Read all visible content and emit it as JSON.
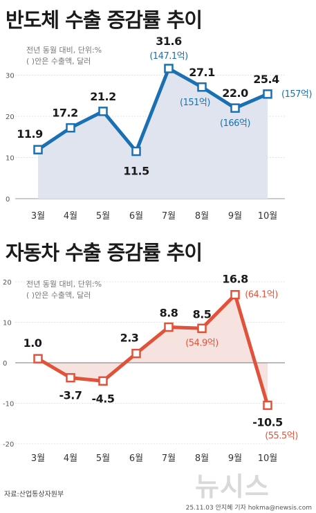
{
  "charts": [
    {
      "title": "반도체 수출 증감률 추이",
      "note1": "전년 동월 대비, 단위:%",
      "note2": "( )안은 수출액, 달러"
    },
    {
      "title": "자동차 수출 증감률 추이",
      "note1": "전년 동월 대비, 단위:%",
      "note2": "( )안은 수출액, 달러"
    }
  ],
  "chart_data": [
    {
      "type": "area",
      "title": "반도체 수출 증감률 추이",
      "categories": [
        "3월",
        "4월",
        "5월",
        "6월",
        "7월",
        "8월",
        "9월",
        "10월"
      ],
      "values": [
        11.9,
        17.2,
        21.2,
        11.5,
        31.6,
        27.1,
        22.0,
        25.4
      ],
      "value_labels": [
        "11.9",
        "17.2",
        "21.2",
        "11.5",
        "31.6",
        "27.1",
        "22.0",
        "25.4"
      ],
      "export_labels": [
        "",
        "",
        "",
        "",
        "(147.1억)",
        "(151억)",
        "(166억)",
        "(157억)"
      ],
      "yticks": [
        "0",
        "10",
        "20",
        "30"
      ],
      "ylim": [
        0,
        36
      ],
      "line_color": "#1b6fb3",
      "fill_color": "#dfe4ee"
    },
    {
      "type": "area",
      "title": "자동차 수출 증감률 추이",
      "categories": [
        "3월",
        "4월",
        "5월",
        "6월",
        "7월",
        "8월",
        "9월",
        "10월"
      ],
      "values": [
        1.0,
        -3.7,
        -4.5,
        2.3,
        8.8,
        8.5,
        16.8,
        -10.5
      ],
      "value_labels": [
        "1.0",
        "-3.7",
        "-4.5",
        "2.3",
        "8.8",
        "8.5",
        "16.8",
        "-10.5"
      ],
      "export_labels": [
        "",
        "",
        "",
        "",
        "",
        "(54.9억)",
        "(64.1억)",
        "(55.5억)"
      ],
      "yticks": [
        "20",
        "10",
        "0",
        "-10",
        "-20"
      ],
      "ylim": [
        -20,
        20
      ],
      "line_color": "#e0533a",
      "fill_color": "#f6e3df"
    }
  ],
  "footer": {
    "source": "자료:산업통상자원부",
    "credit": "25.11.03  안지혜 기자  hokma@newsis.com",
    "logo": "뉴시스"
  }
}
